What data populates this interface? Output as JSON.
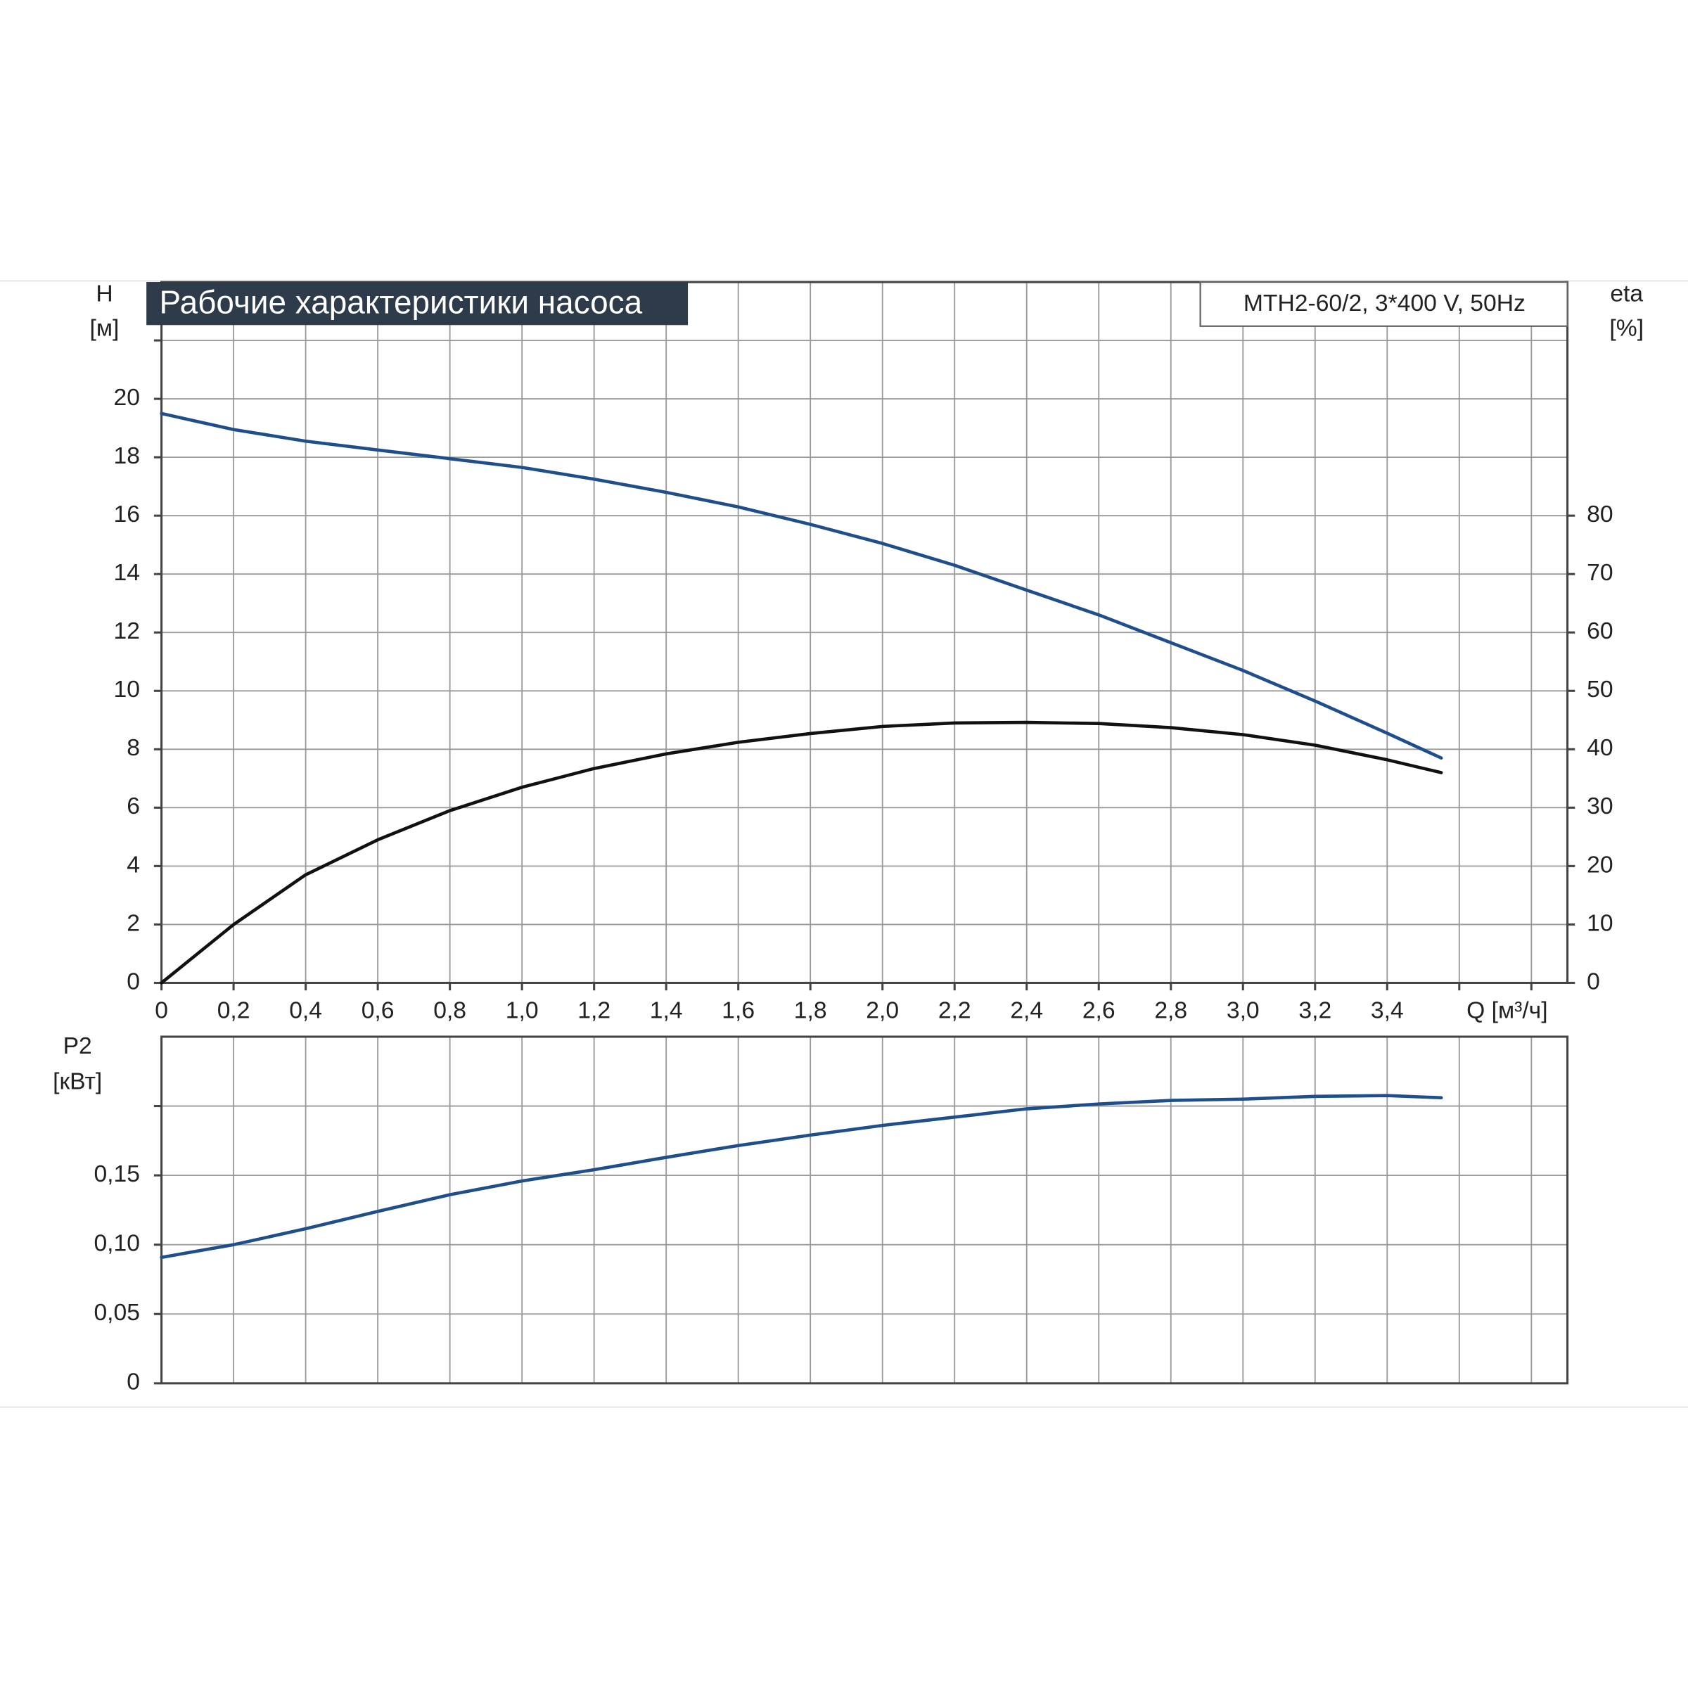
{
  "chart_data": [
    {
      "type": "line",
      "title": "Рабочие характеристики насоса",
      "subtitle": "MTH2-60/2, 3*400 V, 50Hz",
      "ylabel": "H",
      "ylabel_unit": "[м]",
      "y2label": "eta",
      "y2label_unit": "[%]",
      "xlabel": "Q [м³/ч]",
      "xlim": [
        0,
        3.9
      ],
      "xticks": [
        0,
        {
          "value": 0.2,
          "label": "0,2"
        },
        {
          "value": 0.4,
          "label": "0,4"
        },
        {
          "value": 0.6,
          "label": "0,6"
        },
        {
          "value": 0.8,
          "label": "0,8"
        },
        {
          "value": 1.0,
          "label": "1,0"
        },
        {
          "value": 1.2,
          "label": "1,2"
        },
        {
          "value": 1.4,
          "label": "1,4"
        },
        {
          "value": 1.6,
          "label": "1,6"
        },
        {
          "value": 1.8,
          "label": "1,8"
        },
        {
          "value": 2.0,
          "label": "2,0"
        },
        {
          "value": 2.2,
          "label": "2,2"
        },
        {
          "value": 2.4,
          "label": "2,4"
        },
        {
          "value": 2.6,
          "label": "2,6"
        },
        {
          "value": 2.8,
          "label": "2,8"
        },
        {
          "value": 3.0,
          "label": "3,0"
        },
        {
          "value": 3.2,
          "label": "3,2"
        },
        {
          "value": 3.4,
          "label": "3,4"
        },
        {
          "value": 3.6,
          "label": null
        },
        {
          "value": 3.8,
          "label": null
        }
      ],
      "ylim": [
        0,
        24
      ],
      "yticks": [
        0,
        2,
        4,
        6,
        8,
        10,
        12,
        14,
        16,
        18,
        20,
        {
          "value": 22,
          "label": null
        }
      ],
      "y2lim": [
        0,
        120
      ],
      "y2ticks": [
        0,
        10,
        20,
        30,
        40,
        50,
        60,
        70,
        80
      ],
      "grid": true,
      "x": [
        0,
        0.2,
        0.4,
        0.6,
        0.7,
        0.8,
        1.0,
        1.2,
        1.4,
        1.6,
        1.8,
        2.0,
        2.2,
        2.4,
        2.6,
        2.8,
        3.0,
        3.2,
        3.4,
        3.55
      ],
      "series": [
        {
          "color": "#1f4e8c",
          "values": [
            19.5,
            18.95,
            18.55,
            18.25,
            18.1,
            17.95,
            17.65,
            17.25,
            16.8,
            16.3,
            15.7,
            15.05,
            14.3,
            13.45,
            12.6,
            11.65,
            10.7,
            9.65,
            8.55,
            7.7
          ]
        },
        {
          "color": "#111111",
          "axis": "y2",
          "values": [
            0,
            10,
            18.5,
            24.5,
            27,
            29.5,
            33.5,
            36.7,
            39.2,
            41.2,
            42.7,
            43.9,
            44.5,
            44.6,
            44.4,
            43.7,
            42.5,
            40.7,
            38.2,
            36
          ]
        }
      ]
    },
    {
      "type": "line",
      "ylabel": "P2",
      "ylabel_unit": "[кВт]",
      "xlim": [
        0,
        3.9
      ],
      "ylim": [
        0,
        0.25
      ],
      "yticks": [
        0,
        {
          "value": 0.05,
          "label": "0,05"
        },
        {
          "value": 0.1,
          "label": "0,10"
        },
        {
          "value": 0.15,
          "label": "0,15"
        },
        {
          "value": 0.2,
          "label": null
        }
      ],
      "grid": true,
      "x": [
        0,
        0.2,
        0.4,
        0.6,
        0.8,
        1.0,
        1.2,
        1.4,
        1.6,
        1.8,
        2.0,
        2.2,
        2.4,
        2.6,
        2.8,
        3.0,
        3.2,
        3.4,
        3.55
      ],
      "series": [
        {
          "color": "#1f4e8c",
          "values": [
            0.0908,
            0.1,
            0.1115,
            0.124,
            0.136,
            0.146,
            0.154,
            0.163,
            0.1715,
            0.179,
            0.186,
            0.192,
            0.198,
            0.2015,
            0.204,
            0.205,
            0.207,
            0.2075,
            0.206
          ]
        }
      ]
    }
  ]
}
